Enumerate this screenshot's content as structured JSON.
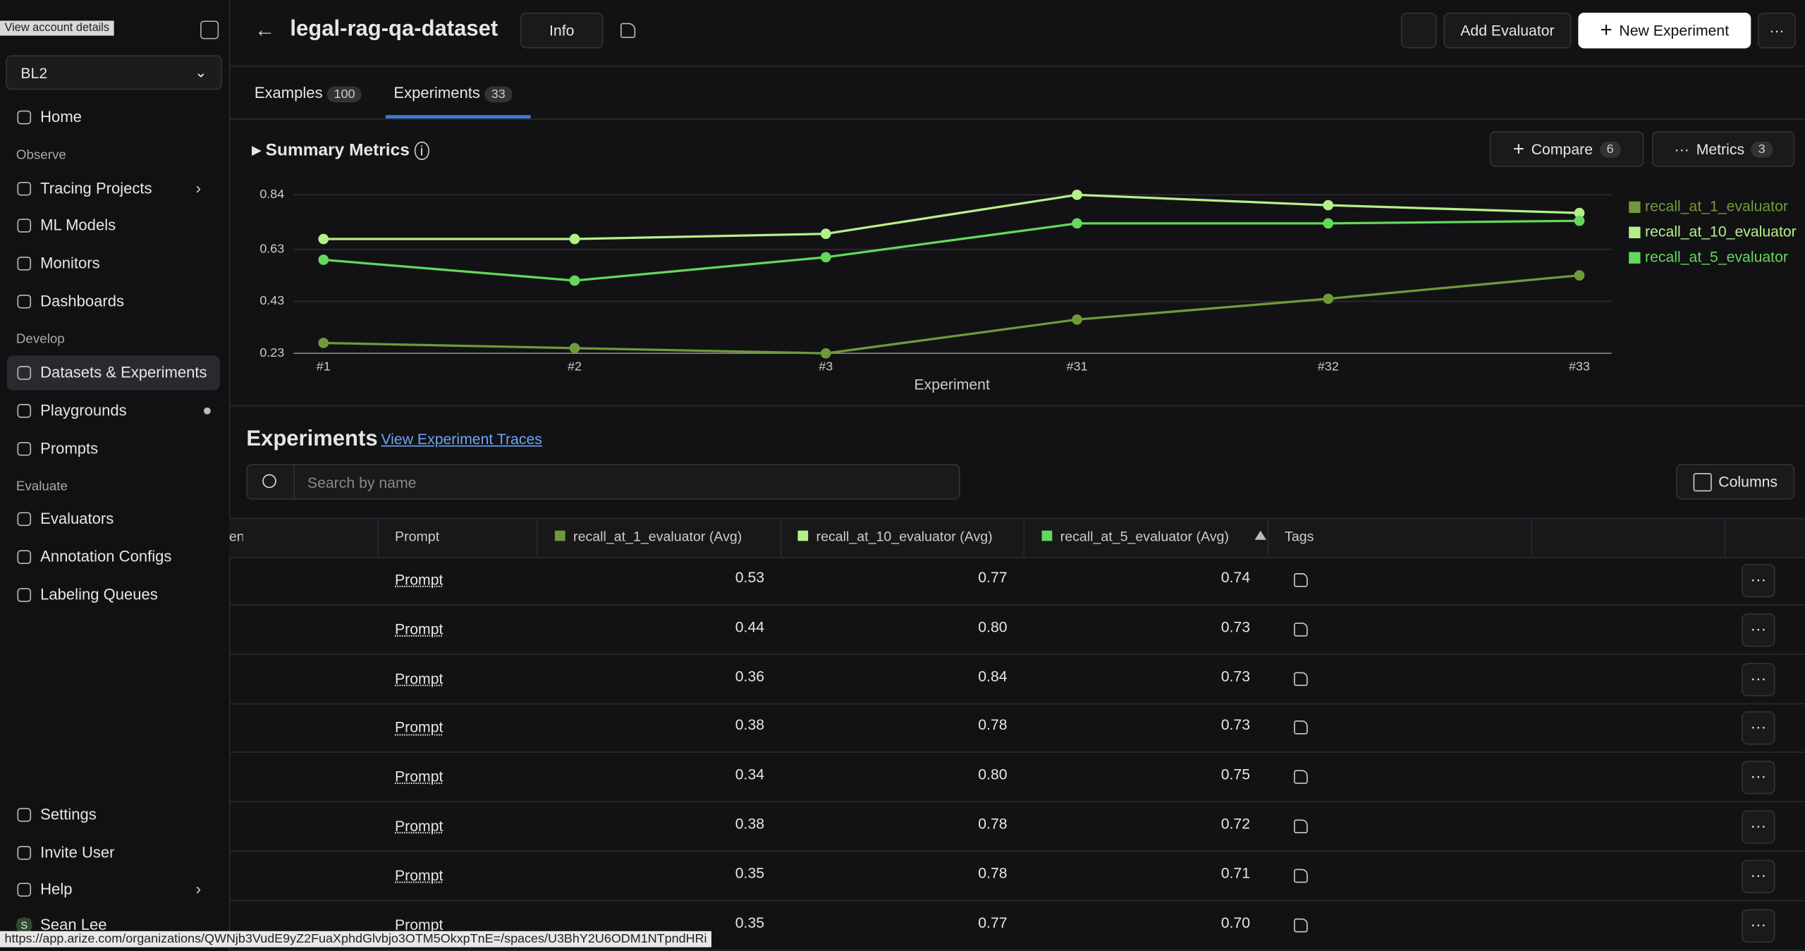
{
  "tooltip": "View account details",
  "sidebar": {
    "space": "BL2",
    "home": "Home",
    "sections": [
      {
        "title": "Observe",
        "items": [
          "Tracing Projects",
          "ML Models",
          "Monitors",
          "Dashboards"
        ]
      },
      {
        "title": "Develop",
        "items": [
          "Datasets & Experiments",
          "Playgrounds",
          "Prompts"
        ]
      },
      {
        "title": "Evaluate",
        "items": [
          "Evaluators",
          "Annotation Configs",
          "Labeling Queues"
        ]
      }
    ],
    "bottom": [
      "Settings",
      "Invite User",
      "Help",
      "Sean Lee"
    ],
    "avatar": "S"
  },
  "header": {
    "title": "legal-rag-qa-dataset",
    "info": "Info",
    "add_evaluator": "Add Evaluator",
    "new_experiment": "New Experiment"
  },
  "tabs": [
    {
      "label": "Examples",
      "count": 100
    },
    {
      "label": "Experiments",
      "count": 33
    }
  ],
  "summary": {
    "title": "Summary Metrics",
    "compare": "Compare",
    "compare_count": 6,
    "metrics": "Metrics",
    "metrics_count": 3
  },
  "chart_data": {
    "type": "line",
    "x_label": "Experiment",
    "categories": [
      "#1",
      "#2",
      "#3",
      "#31",
      "#32",
      "#33"
    ],
    "series": [
      {
        "name": "recall_at_1_evaluator",
        "color": "#6f9a3a",
        "values": [
          0.27,
          0.25,
          0.23,
          0.36,
          0.44,
          0.53
        ]
      },
      {
        "name": "recall_at_10_evaluator",
        "color": "#b4f08a",
        "values": [
          0.67,
          0.67,
          0.69,
          0.84,
          0.8,
          0.77
        ]
      },
      {
        "name": "recall_at_5_evaluator",
        "color": "#63d85a",
        "values": [
          0.59,
          0.51,
          0.6,
          0.73,
          0.73,
          0.74
        ]
      }
    ],
    "ylim": [
      0.23,
      0.85
    ],
    "yticks": [
      0.23,
      0.43,
      0.63,
      0.84
    ],
    "grid": true
  },
  "experiments": {
    "title": "Experiments",
    "traces_link": "View Experiment Traces",
    "search_placeholder": "Search by name",
    "columns_button": "Columns"
  },
  "table": {
    "headers": [
      "ent",
      "Prompt",
      "recall_at_1_evaluator (Avg)",
      "recall_at_10_evaluator (Avg)",
      "recall_at_5_evaluator (Avg)",
      "Tags"
    ],
    "rows": [
      [
        "Prompt",
        "0.53",
        "0.77",
        "0.74"
      ],
      [
        "Prompt",
        "0.44",
        "0.80",
        "0.73"
      ],
      [
        "Prompt",
        "0.36",
        "0.84",
        "0.73"
      ],
      [
        "Prompt",
        "0.38",
        "0.78",
        "0.73"
      ],
      [
        "Prompt",
        "0.34",
        "0.80",
        "0.75"
      ],
      [
        "Prompt",
        "0.38",
        "0.78",
        "0.72"
      ],
      [
        "Prompt",
        "0.35",
        "0.78",
        "0.71"
      ],
      [
        "Prompt",
        "0.35",
        "0.77",
        "0.70"
      ]
    ]
  },
  "status_url": "https://app.arize.com/organizations/QWNjb3VudE9yZ2FuaXphdGlvbjo3OTM5OkxpTnE=/spaces/U3BhY2U6ODM1NTpndHRi"
}
